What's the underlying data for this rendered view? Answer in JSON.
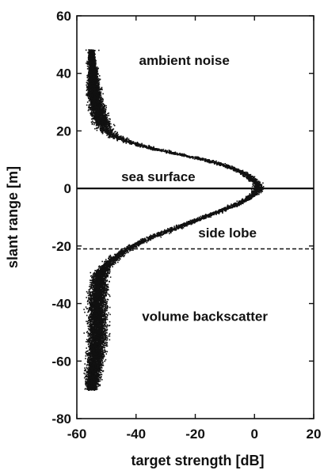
{
  "chart_data": {
    "type": "scatter",
    "title": "",
    "xlabel": "target strength [dB]",
    "ylabel": "slant range [m]",
    "xlim": [
      -60,
      20
    ],
    "ylim": [
      -80,
      60
    ],
    "xticks": [
      -60,
      -40,
      -20,
      0,
      20
    ],
    "yticks": [
      -80,
      -60,
      -40,
      -20,
      0,
      20,
      40,
      60
    ],
    "xtick_labels": [
      "-60",
      "-40",
      "-20",
      "0",
      "20"
    ],
    "ytick_labels": [
      "-80",
      "-60",
      "-40",
      "-20",
      "0",
      "20",
      "40",
      "60"
    ],
    "grid": false,
    "legend": "none",
    "annotations": [
      {
        "text": "ambient noise",
        "x": -39,
        "y": 43
      },
      {
        "text": "sea surface",
        "x": -45,
        "y": 2.5
      },
      {
        "text": "side lobe",
        "x": -19,
        "y": -17
      },
      {
        "text": "volume backscatter",
        "x": -38,
        "y": -46
      }
    ],
    "reference_lines": [
      {
        "name": "sea surface",
        "y": 0,
        "style": "solid"
      },
      {
        "name": "side lobe",
        "y": -21,
        "style": "dashed"
      }
    ],
    "series": [
      {
        "marker": "dots",
        "color": "#111111",
        "profile": {
          "slant_range": [
            48,
            44,
            40,
            36,
            32,
            28,
            24,
            20,
            18,
            16,
            14,
            12,
            10,
            8,
            6,
            4,
            2,
            0,
            -2,
            -4,
            -6,
            -8,
            -10,
            -12,
            -14,
            -16,
            -18,
            -20,
            -22,
            -24,
            -26,
            -28,
            -30,
            -34,
            -40,
            -46,
            -52,
            -58,
            -62,
            -66,
            -70
          ],
          "target_strength": [
            -55,
            -55,
            -54.5,
            -54.5,
            -54,
            -53,
            -52,
            -50,
            -47,
            -42,
            -35,
            -26,
            -17,
            -10,
            -5,
            -1.5,
            0.5,
            1.5,
            0,
            -3,
            -7,
            -12,
            -17,
            -22,
            -27,
            -32,
            -37,
            -41,
            -44,
            -47,
            -49,
            -51,
            -52,
            -52.5,
            -53,
            -53,
            -53,
            -53.5,
            -54,
            -54.5,
            -55
          ],
          "spread_db": [
            0.8,
            1.2,
            1.5,
            2.0,
            2.2,
            2.5,
            2.8,
            2.5,
            2.2,
            2.0,
            2.0,
            1.8,
            1.8,
            1.6,
            1.5,
            1.5,
            1.5,
            1.5,
            1.5,
            1.5,
            1.6,
            1.6,
            1.6,
            1.8,
            1.8,
            1.8,
            1.8,
            1.8,
            1.8,
            2.0,
            2.0,
            2.2,
            2.5,
            2.8,
            3.0,
            3.0,
            3.0,
            2.8,
            2.5,
            2.2,
            1.8
          ]
        }
      }
    ]
  }
}
